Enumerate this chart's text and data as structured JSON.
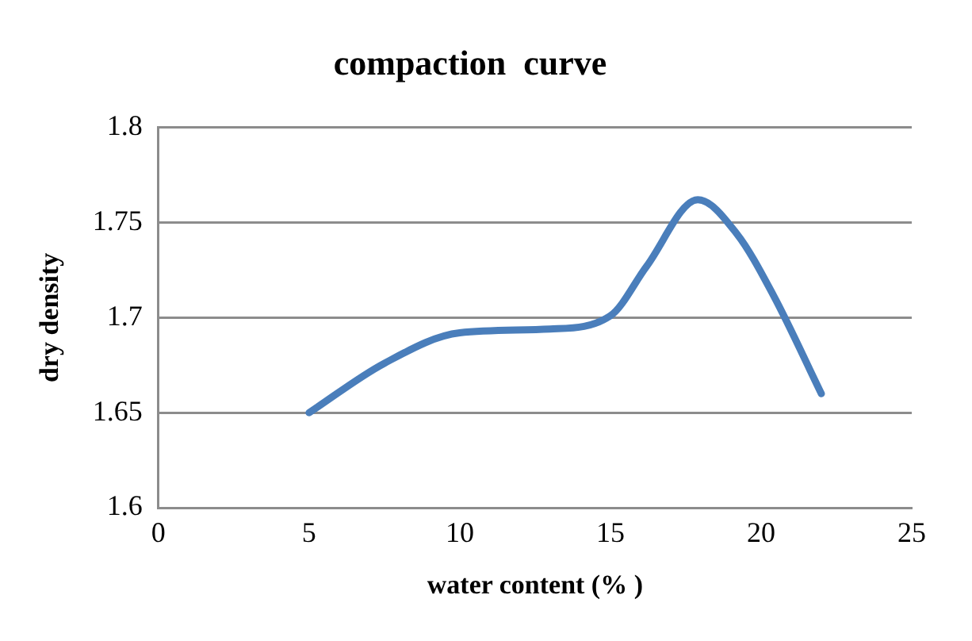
{
  "chart_data": {
    "type": "line",
    "title": "compaction  curve",
    "xlabel": "water content (% )",
    "ylabel": "dry density",
    "x": [
      5,
      7.5,
      10,
      13,
      15,
      16.2,
      17.9,
      19.2,
      20.4,
      22
    ],
    "series": [
      {
        "color": "#4a7ebb",
        "values": [
          1.65,
          1.676,
          1.692,
          1.694,
          1.701,
          1.727,
          1.762,
          1.744,
          1.712,
          1.66
        ]
      }
    ],
    "xlim": [
      0,
      25
    ],
    "xticks": [
      0,
      5,
      10,
      15,
      20,
      25
    ],
    "ylim": [
      1.6,
      1.8
    ],
    "yticks": [
      1.6,
      1.65,
      1.7,
      1.75,
      1.8
    ],
    "grid": "y",
    "legend": false,
    "marker": "none",
    "line_style": "solid"
  }
}
